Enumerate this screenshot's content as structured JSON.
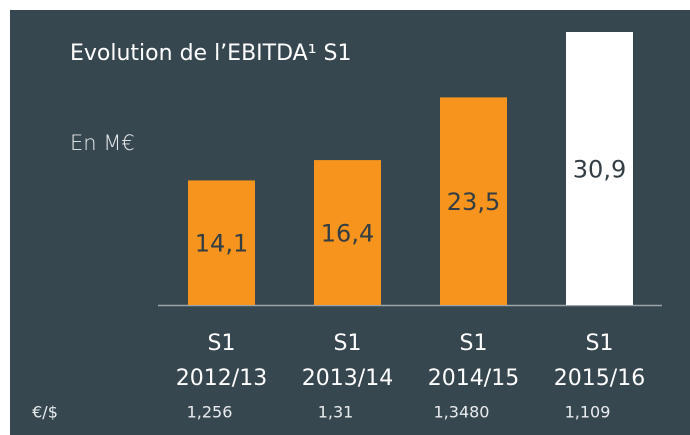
{
  "chart_data": {
    "type": "bar",
    "title": "Evolution de l’EBITDA¹ S1",
    "subtitle": "En M€",
    "categories": [
      [
        "S1",
        "2012/13"
      ],
      [
        "S1",
        "2013/14"
      ],
      [
        "S1",
        "2014/15"
      ],
      [
        "S1",
        "2015/16"
      ]
    ],
    "values": [
      14.1,
      16.4,
      23.5,
      30.9
    ],
    "value_labels": [
      "14,1",
      "16,4",
      "23,5",
      "30,9"
    ],
    "colors": [
      "#f7941d",
      "#f7941d",
      "#f7941d",
      "#ffffff"
    ],
    "rates": {
      "label": "€/$",
      "values": [
        "1,256",
        "1,31",
        "1,3480",
        "1,109"
      ]
    }
  }
}
